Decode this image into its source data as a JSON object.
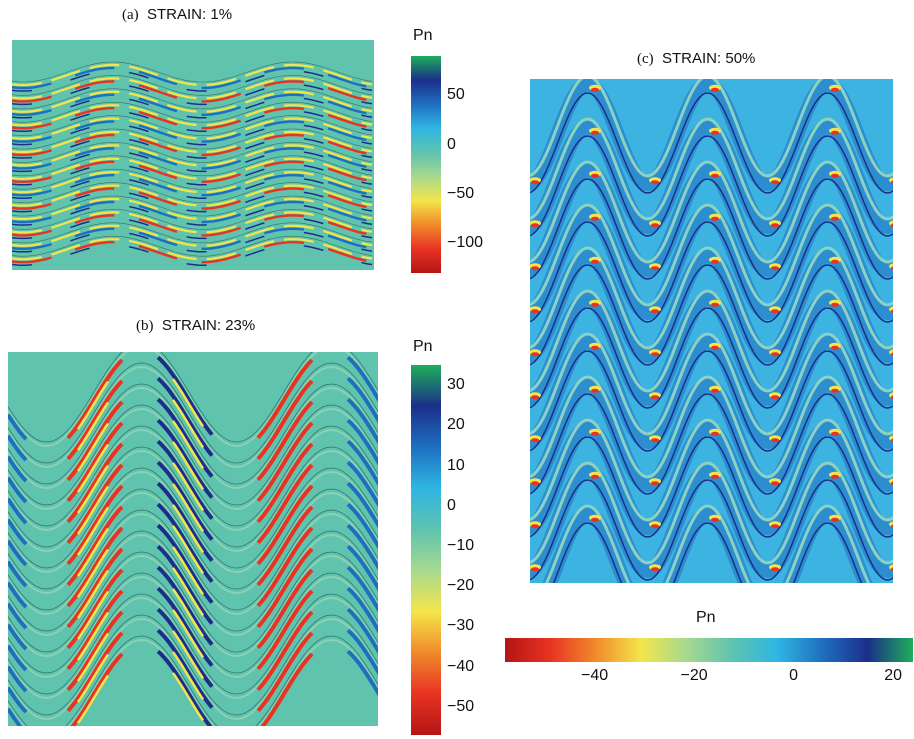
{
  "panels": [
    {
      "id": "a",
      "letter": "(a)",
      "label": "STRAIN:",
      "value": "1%"
    },
    {
      "id": "b",
      "letter": "(b)",
      "label": "STRAIN:",
      "value": "23%"
    },
    {
      "id": "c",
      "letter": "(c)",
      "label": "STRAIN:",
      "value": "50%"
    }
  ],
  "colorbars": {
    "a": {
      "label": "Pn",
      "ticks": [
        "50",
        "0",
        "−50",
        "−100"
      ],
      "tick_values": [
        50,
        0,
        -50,
        -100
      ],
      "range": [
        -130,
        90
      ]
    },
    "b": {
      "label": "Pn",
      "ticks": [
        "30",
        "20",
        "10",
        "0",
        "−10",
        "−20",
        "−30",
        "−40",
        "−50"
      ],
      "tick_values": [
        30,
        20,
        10,
        0,
        -10,
        -20,
        -30,
        -40,
        -50
      ],
      "range": [
        -57,
        35
      ]
    },
    "c": {
      "label": "Pn",
      "ticks": [
        "−40",
        "−20",
        "0",
        "20"
      ],
      "tick_values": [
        -40,
        -20,
        0,
        20
      ],
      "range": [
        -58,
        24
      ]
    }
  },
  "colors": {
    "background": "#5fc3ae",
    "dark_red": "#b31515",
    "red": "#e83323",
    "orange": "#f08a2a",
    "yellow": "#f4e54a",
    "light_green": "#a7d98f",
    "teal": "#5fc3ae",
    "cyan": "#2fb6e3",
    "blue": "#1f6fbf",
    "navy": "#1b2f8a",
    "green": "#1fae5a",
    "panel_c_background": "#3db3e1"
  }
}
